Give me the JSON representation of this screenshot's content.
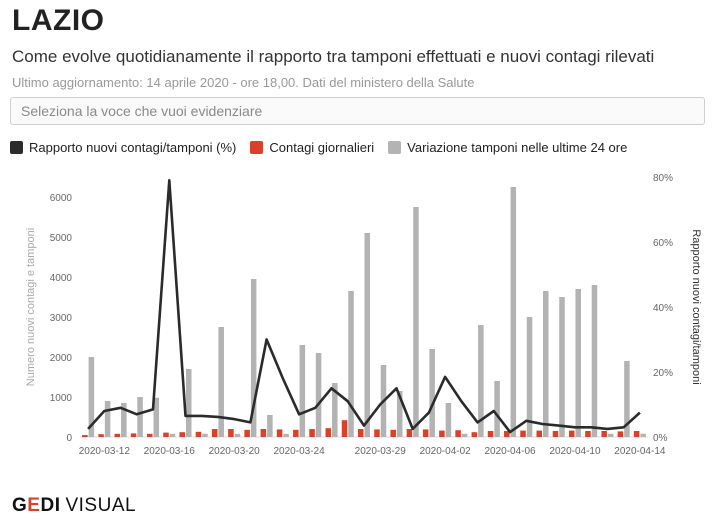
{
  "header": {
    "title": "LAZIO",
    "subtitle": "Come evolve quotidianamente il rapporto tra tamponi effettuati e nuovi contagi rilevati",
    "updated": "Ultimo aggiornamento: 14 aprile 2020 - ore 18,00. Dati del ministero della Salute"
  },
  "selector": {
    "placeholder": "Seleziona la voce che vuoi evidenziare"
  },
  "legend": [
    {
      "label": "Rapporto nuovi contagi/tamponi (%)",
      "color": "#2b2b2b"
    },
    {
      "label": "Contagi giornalieri",
      "color": "#d9412b"
    },
    {
      "label": "Variazione tamponi nelle ultime 24 ore",
      "color": "#b3b3b3"
    }
  ],
  "logo": {
    "brand_g": "G",
    "brand_e": "E",
    "brand_di": "DI",
    "visual": "VISUAL"
  },
  "chart_data": {
    "type": "bar",
    "x": [
      "2020-03-11",
      "2020-03-12",
      "2020-03-13",
      "2020-03-14",
      "2020-03-15",
      "2020-03-16",
      "2020-03-17",
      "2020-03-18",
      "2020-03-19",
      "2020-03-20",
      "2020-03-21",
      "2020-03-22",
      "2020-03-23",
      "2020-03-24",
      "2020-03-25",
      "2020-03-26",
      "2020-03-27",
      "2020-03-28",
      "2020-03-29",
      "2020-03-30",
      "2020-03-31",
      "2020-04-01",
      "2020-04-02",
      "2020-04-03",
      "2020-04-04",
      "2020-04-05",
      "2020-04-06",
      "2020-04-07",
      "2020-04-08",
      "2020-04-09",
      "2020-04-10",
      "2020-04-11",
      "2020-04-12",
      "2020-04-13",
      "2020-04-14"
    ],
    "x_tick_labels": [
      "2020-03-12",
      "2020-03-16",
      "2020-03-20",
      "2020-03-24",
      "2020-03-29",
      "2020-04-02",
      "2020-04-06",
      "2020-04-10",
      "2020-04-14"
    ],
    "series": [
      {
        "name": "Variazione tamponi nelle ultime 24 ore",
        "type": "bar",
        "axis": "left",
        "color": "#b3b3b3",
        "values": [
          2000,
          900,
          850,
          1000,
          980,
          80,
          1700,
          80,
          2750,
          80,
          3950,
          550,
          80,
          2300,
          2100,
          1350,
          3650,
          5100,
          1800,
          1150,
          5750,
          2200,
          850,
          80,
          2800,
          1400,
          6250,
          3000,
          3650,
          3500,
          3700,
          3800,
          80,
          1900,
          80
        ]
      },
      {
        "name": "Contagi giornalieri",
        "type": "bar",
        "axis": "left",
        "color": "#d9412b",
        "values": [
          50,
          70,
          80,
          90,
          80,
          110,
          120,
          130,
          200,
          200,
          180,
          200,
          190,
          180,
          200,
          220,
          420,
          200,
          190,
          180,
          200,
          190,
          160,
          170,
          120,
          150,
          150,
          160,
          160,
          150,
          160,
          150,
          150,
          140,
          150
        ]
      },
      {
        "name": "Rapporto nuovi contagi/tamponi (%)",
        "type": "line",
        "axis": "right",
        "color": "#2b2b2b",
        "values": [
          2.5,
          8,
          9,
          7,
          8.5,
          79,
          6.5,
          6.5,
          6.2,
          5.5,
          4.5,
          30,
          18,
          7,
          9,
          15,
          11,
          3.5,
          10,
          15,
          2.5,
          7.5,
          18.5,
          11,
          4.5,
          8,
          1.5,
          5,
          4,
          3.5,
          3,
          3,
          2.5,
          3,
          7.5
        ]
      }
    ],
    "ylabel": "Numero nuovi contagi e tamponi",
    "y2label": "Rapporto nuovi contagi/tamponi",
    "ylim": [
      0,
      6500
    ],
    "yticks": [
      0,
      1000,
      2000,
      3000,
      4000,
      5000,
      6000
    ],
    "y2lim": [
      0,
      80
    ],
    "y2ticks": [
      "0%",
      "20%",
      "40%",
      "60%",
      "80%"
    ],
    "grid": false
  }
}
